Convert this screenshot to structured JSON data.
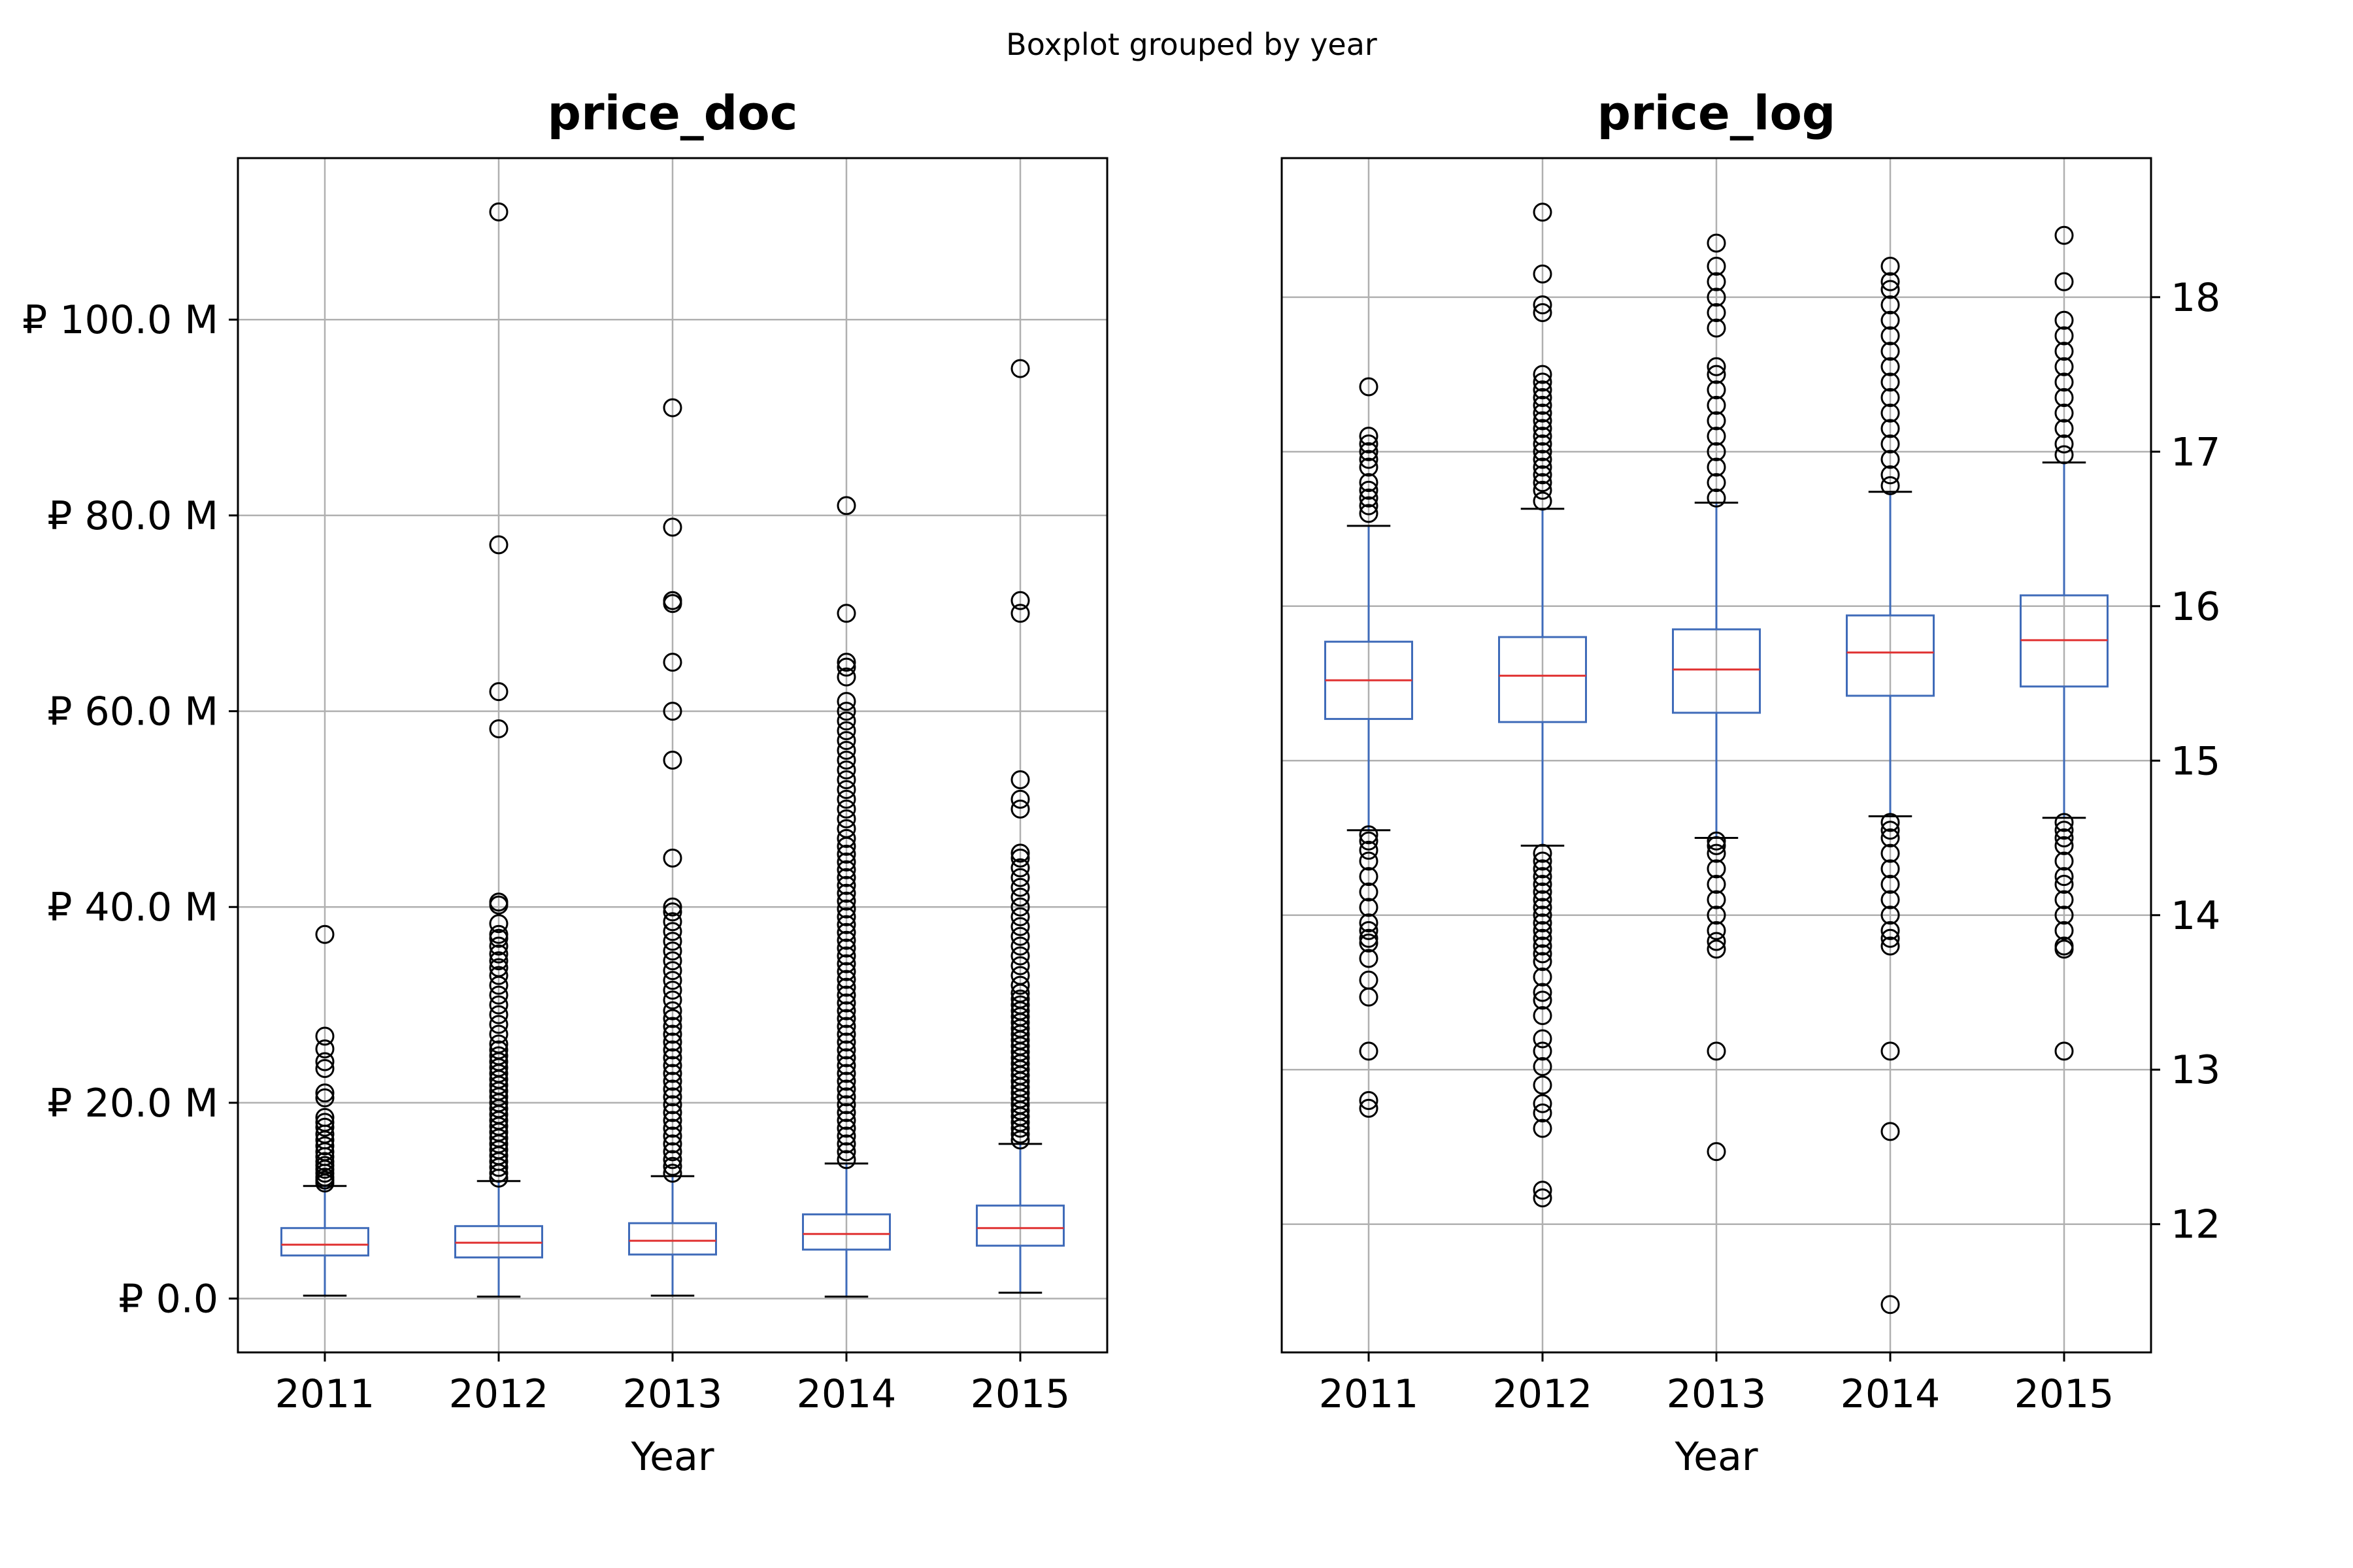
{
  "figure": {
    "title": "Boxplot grouped by year"
  },
  "colors": {
    "box": "#3f6bb9",
    "median": "#e03131",
    "grid": "#b0b0b0",
    "outlier": "#000000"
  },
  "chart_data": [
    {
      "type": "box",
      "title": "price_doc",
      "xlabel": "Year",
      "ylabel": "",
      "categories": [
        "2011",
        "2012",
        "2013",
        "2014",
        "2015"
      ],
      "ylim": [
        -5.5,
        116.5
      ],
      "yaxis_side": "left",
      "grid": true,
      "yticks": [
        0,
        20,
        40,
        60,
        80,
        100
      ],
      "ytick_labels": [
        "₽ 0.0",
        "₽ 20.0 M",
        "₽ 40.0 M",
        "₽ 60.0 M",
        "₽ 80.0 M",
        "₽ 100.0 M"
      ],
      "boxes": [
        {
          "whislo": 0.3,
          "q1": 4.4,
          "med": 5.5,
          "q3": 7.2,
          "whishi": 11.5,
          "fliers": [
            11.8,
            12.1,
            12.4,
            12.8,
            13.2,
            13.6,
            14.0,
            14.5,
            15.0,
            15.6,
            16.2,
            16.8,
            17.5,
            18.0,
            18.5,
            20.5,
            21.0,
            23.5,
            24.2,
            25.5,
            26.8,
            37.2
          ]
        },
        {
          "whislo": 0.2,
          "q1": 4.2,
          "med": 5.7,
          "q3": 7.4,
          "whishi": 12.0,
          "fliers": [
            12.3,
            12.8,
            13.4,
            14.0,
            14.6,
            15.2,
            15.8,
            16.4,
            17.0,
            17.6,
            18.2,
            18.8,
            19.4,
            20.0,
            20.6,
            21.2,
            21.8,
            22.4,
            23.0,
            23.6,
            24.2,
            24.8,
            25.4,
            26.0,
            27.0,
            28.0,
            29.0,
            30.0,
            31.0,
            32.0,
            33.0,
            33.8,
            34.5,
            35.2,
            36.0,
            36.8,
            37.2,
            38.3,
            40.2,
            40.5,
            58.2,
            62.0,
            77.0,
            111.0
          ]
        },
        {
          "whislo": 0.3,
          "q1": 4.5,
          "med": 5.9,
          "q3": 7.7,
          "whishi": 12.5,
          "fliers": [
            12.8,
            13.5,
            14.2,
            15.0,
            15.8,
            16.6,
            17.4,
            18.2,
            19.0,
            19.8,
            20.6,
            21.4,
            22.2,
            23.0,
            23.8,
            24.6,
            25.4,
            26.2,
            27.0,
            27.8,
            28.6,
            29.4,
            30.5,
            31.5,
            32.5,
            33.5,
            34.5,
            35.5,
            36.5,
            37.5,
            38.5,
            39.5,
            40.0,
            45.0,
            55.0,
            60.0,
            65.0,
            71.0,
            71.3,
            78.8,
            91.0
          ]
        },
        {
          "whislo": 0.2,
          "q1": 5.0,
          "med": 6.6,
          "q3": 8.6,
          "whishi": 13.8,
          "fliers": [
            14.2,
            15.0,
            15.8,
            16.6,
            17.4,
            18.2,
            19.0,
            19.8,
            20.6,
            21.4,
            22.2,
            23.0,
            23.8,
            24.6,
            25.4,
            26.2,
            27.0,
            27.8,
            28.6,
            29.4,
            30.2,
            31.0,
            31.8,
            32.6,
            33.4,
            34.2,
            35.0,
            35.8,
            36.6,
            37.4,
            38.2,
            39.0,
            39.8,
            40.6,
            41.4,
            42.2,
            43.0,
            43.8,
            44.6,
            45.4,
            46.2,
            47.0,
            48.0,
            49.0,
            50.0,
            51.0,
            52.0,
            53.0,
            54.0,
            55.0,
            56.0,
            57.0,
            58.0,
            59.0,
            60.0,
            61.0,
            63.5,
            64.5,
            65.0,
            70.0,
            81.0
          ]
        },
        {
          "whislo": 0.6,
          "q1": 5.4,
          "med": 7.2,
          "q3": 9.5,
          "whishi": 15.8,
          "fliers": [
            16.2,
            16.8,
            17.4,
            18.0,
            18.6,
            19.2,
            19.8,
            20.4,
            21.0,
            21.6,
            22.2,
            22.8,
            23.4,
            24.0,
            24.6,
            25.2,
            25.8,
            26.4,
            27.0,
            27.6,
            28.2,
            28.8,
            29.4,
            30.0,
            30.6,
            31.2,
            32.0,
            33.0,
            34.0,
            35.0,
            36.0,
            37.0,
            38.0,
            39.0,
            40.0,
            41.0,
            42.0,
            43.0,
            44.0,
            45.0,
            45.5,
            50.0,
            51.0,
            53.0,
            70.0,
            71.3,
            95.0
          ]
        }
      ]
    },
    {
      "type": "box",
      "title": "price_log",
      "xlabel": "Year",
      "ylabel": "",
      "categories": [
        "2011",
        "2012",
        "2013",
        "2014",
        "2015"
      ],
      "ylim": [
        11.17,
        18.9
      ],
      "yaxis_side": "right",
      "grid": true,
      "yticks": [
        12,
        13,
        14,
        15,
        16,
        17,
        18
      ],
      "ytick_labels": [
        "12",
        "13",
        "14",
        "15",
        "16",
        "17",
        "18"
      ],
      "boxes": [
        {
          "whislo": 14.55,
          "q1": 15.27,
          "med": 15.52,
          "q3": 15.77,
          "whishi": 16.52,
          "fliers": [
            12.75,
            12.8,
            13.12,
            13.47,
            13.58,
            13.72,
            13.82,
            13.85,
            13.9,
            13.95,
            14.05,
            14.15,
            14.25,
            14.35,
            14.42,
            14.48,
            14.52,
            16.6,
            16.65,
            16.7,
            16.75,
            16.8,
            16.9,
            16.95,
            17.0,
            17.05,
            17.1,
            17.42
          ]
        },
        {
          "whislo": 14.45,
          "q1": 15.25,
          "med": 15.55,
          "q3": 15.8,
          "whishi": 16.63,
          "fliers": [
            12.17,
            12.22,
            12.62,
            12.72,
            12.78,
            12.9,
            13.02,
            13.12,
            13.2,
            13.35,
            13.45,
            13.5,
            13.6,
            13.7,
            13.75,
            13.8,
            13.85,
            13.9,
            13.95,
            14.0,
            14.05,
            14.1,
            14.15,
            14.2,
            14.25,
            14.3,
            14.35,
            14.4,
            16.68,
            16.75,
            16.8,
            16.85,
            16.9,
            16.95,
            17.0,
            17.05,
            17.1,
            17.15,
            17.2,
            17.25,
            17.3,
            17.35,
            17.4,
            17.45,
            17.5,
            17.9,
            17.95,
            18.15,
            18.55
          ]
        },
        {
          "whislo": 14.5,
          "q1": 15.31,
          "med": 15.59,
          "q3": 15.85,
          "whishi": 16.67,
          "fliers": [
            12.47,
            13.12,
            13.78,
            13.83,
            13.9,
            14.0,
            14.1,
            14.2,
            14.3,
            14.4,
            14.45,
            14.48,
            16.7,
            16.8,
            16.9,
            17.0,
            17.1,
            17.2,
            17.3,
            17.4,
            17.5,
            17.55,
            17.8,
            17.9,
            18.0,
            18.1,
            18.2,
            18.35
          ]
        },
        {
          "whislo": 14.64,
          "q1": 15.42,
          "med": 15.7,
          "q3": 15.94,
          "whishi": 16.74,
          "fliers": [
            11.48,
            12.6,
            13.12,
            13.8,
            13.85,
            13.9,
            14.0,
            14.1,
            14.2,
            14.3,
            14.4,
            14.5,
            14.55,
            14.6,
            16.78,
            16.85,
            16.95,
            17.05,
            17.15,
            17.25,
            17.35,
            17.45,
            17.55,
            17.65,
            17.75,
            17.85,
            17.95,
            18.05,
            18.1,
            18.2
          ]
        },
        {
          "whislo": 14.63,
          "q1": 15.48,
          "med": 15.78,
          "q3": 16.07,
          "whishi": 16.93,
          "fliers": [
            13.12,
            13.78,
            13.8,
            13.9,
            14.0,
            14.1,
            14.2,
            14.25,
            14.35,
            14.45,
            14.5,
            14.55,
            14.6,
            16.98,
            17.05,
            17.15,
            17.25,
            17.35,
            17.45,
            17.55,
            17.65,
            17.75,
            17.85,
            18.1,
            18.4
          ]
        }
      ]
    }
  ]
}
